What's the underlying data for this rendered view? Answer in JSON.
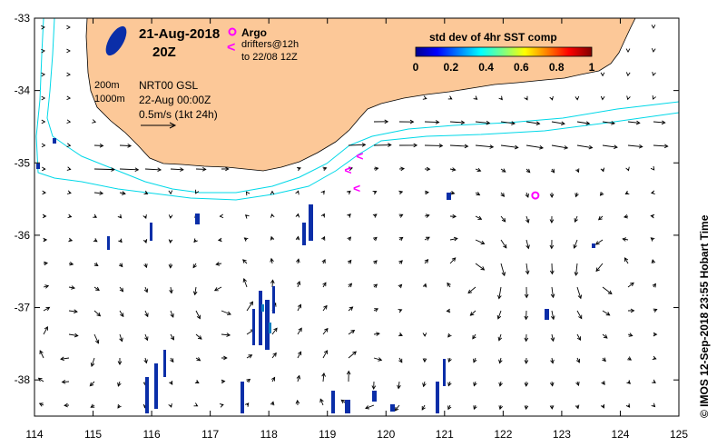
{
  "map": {
    "lon_range": [
      114,
      125
    ],
    "lat_range": [
      -38.5,
      -33
    ],
    "lon_ticks": [
      "114",
      "115",
      "116",
      "117",
      "118",
      "119",
      "120",
      "121",
      "122",
      "123",
      "124",
      "125"
    ],
    "lat_ticks": [
      "-33",
      "-34",
      "-35",
      "-36",
      "-37",
      "-38"
    ],
    "land_color": "#fcc898",
    "contour_color": "#00d8e8"
  },
  "header": {
    "date": "21-Aug-2018",
    "hour": "20Z"
  },
  "legend": {
    "argo_label": "Argo",
    "argo_color": "#ff00ff",
    "drifter_symbol": "<",
    "drifter_line1": "drifters@12h",
    "drifter_line2": "to 22/08 12Z"
  },
  "info": {
    "depth1": "200m",
    "depth2": "1000m",
    "product": "NRT00 GSL",
    "valid": "22-Aug 00:00Z",
    "scale": "0.5m/s (1kt 24h)"
  },
  "colorbar": {
    "title": "std dev of 4hr SST comp",
    "ticks": [
      "0",
      "0.2",
      "0.4",
      "0.6",
      "0.8",
      "1"
    ]
  },
  "credit": "© IMOS 12-Sep-2018 23:55 Hobart Time",
  "argo_floats": [
    {
      "lon": 122.55,
      "lat": -35.45
    }
  ],
  "drifter_positions": [
    {
      "lon": 119.35,
      "lat": -35.1
    },
    {
      "lon": 119.55,
      "lat": -34.9
    },
    {
      "lon": 119.5,
      "lat": -35.35
    }
  ]
}
